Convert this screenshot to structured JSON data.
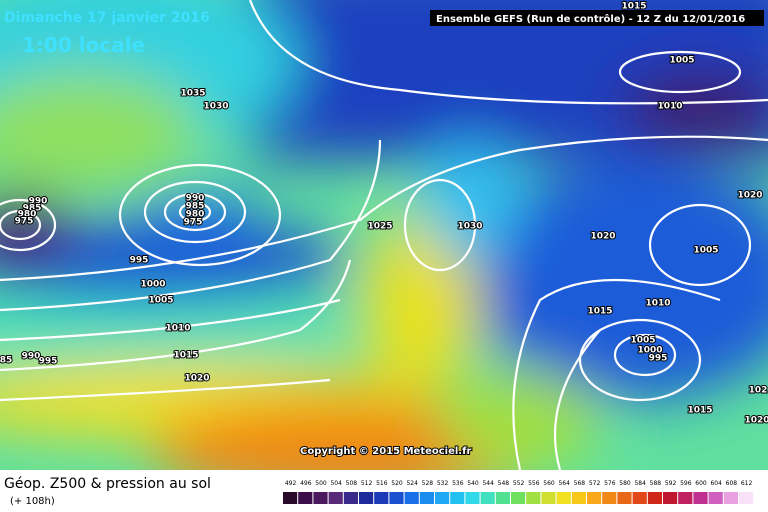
{
  "header": {
    "date": "Dimanche 17 janvier 2016",
    "time": "1:00 locale",
    "run": "Ensemble GEFS  (Run de contrôle)  - 12 Z du 12/01/2016"
  },
  "copyright": "Copyright © 2015 Meteociel.fr",
  "footer": {
    "title": "Géop. Z500 & pression au sol",
    "lead": "(+ 108h)"
  },
  "isobar_labels": [
    1015,
    1005,
    1010,
    1035,
    1030,
    990,
    985,
    980,
    975,
    990,
    985,
    980,
    975,
    995,
    1000,
    1005,
    1010,
    1015,
    1020,
    1025,
    1030,
    1020,
    1005,
    1010,
    1015,
    1005,
    1000,
    995,
    1015,
    1020,
    102,
    1020,
    85,
    990,
    995
  ],
  "scale": {
    "labels": [
      492,
      496,
      500,
      504,
      508,
      512,
      516,
      520,
      524,
      528,
      532,
      536,
      540,
      544,
      548,
      552,
      556,
      560,
      564,
      568,
      572,
      576,
      580,
      584,
      588,
      592,
      596,
      600,
      604,
      608,
      612
    ],
    "colors": [
      "#2a0a2a",
      "#3d0f4a",
      "#4b1a5e",
      "#5a2a7a",
      "#3a2a8a",
      "#1e2a9a",
      "#1a3ab8",
      "#1a50d0",
      "#1a6ee6",
      "#1a8cf0",
      "#20a8f4",
      "#20c0f0",
      "#30d8e8",
      "#40e0c0",
      "#50e090",
      "#70e060",
      "#a0e040",
      "#d0e030",
      "#f0e020",
      "#f8c818",
      "#f8a818",
      "#f08818",
      "#e86818",
      "#e04818",
      "#d02818",
      "#c01830",
      "#c02060",
      "#c03090",
      "#d060c0",
      "#e8a0e0",
      "#f8e0f8"
    ]
  }
}
